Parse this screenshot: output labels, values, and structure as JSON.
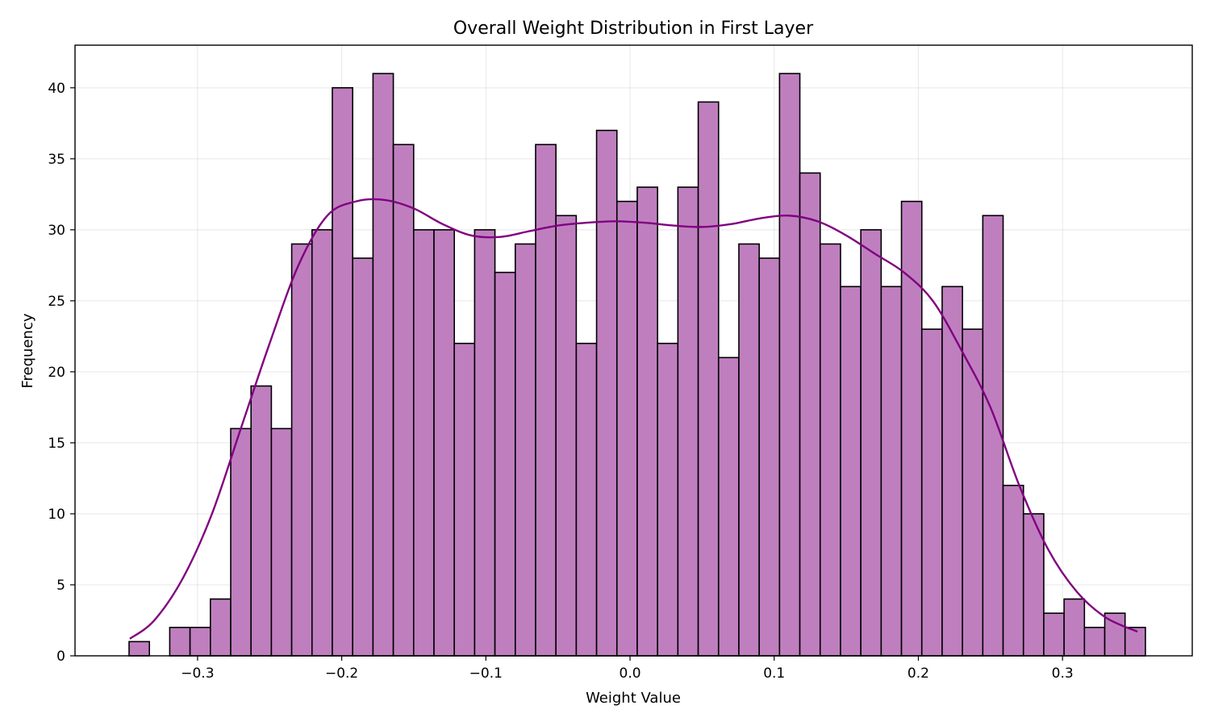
{
  "chart_data": {
    "type": "bar",
    "subtype": "histogram",
    "title": "Overall Weight Distribution in First Layer",
    "xlabel": "Weight Value",
    "ylabel": "Frequency",
    "xlim": [
      -0.385,
      0.39
    ],
    "ylim": [
      0,
      43
    ],
    "xticks": [
      -0.3,
      -0.2,
      -0.1,
      0.0,
      0.1,
      0.2,
      0.3
    ],
    "xtick_labels": [
      "−0.3",
      "−0.2",
      "−0.1",
      "0.0",
      "0.1",
      "0.2",
      "0.3"
    ],
    "yticks": [
      0,
      5,
      10,
      15,
      20,
      25,
      30,
      35,
      40
    ],
    "ytick_labels": [
      "0",
      "5",
      "10",
      "15",
      "20",
      "25",
      "30",
      "35",
      "40"
    ],
    "grid": true,
    "bin_start": -0.3475,
    "bin_width": 0.0141,
    "counts": [
      1,
      0,
      2,
      2,
      4,
      16,
      19,
      16,
      29,
      30,
      40,
      28,
      41,
      36,
      30,
      30,
      22,
      30,
      27,
      29,
      36,
      31,
      22,
      37,
      32,
      33,
      22,
      33,
      39,
      21,
      29,
      28,
      41,
      34,
      29,
      26,
      30,
      26,
      32,
      23,
      26,
      23,
      31,
      12,
      10,
      3,
      4,
      2,
      3,
      2
    ],
    "kde": {
      "x": [
        -0.347,
        -0.33,
        -0.31,
        -0.29,
        -0.27,
        -0.25,
        -0.23,
        -0.21,
        -0.19,
        -0.17,
        -0.15,
        -0.13,
        -0.11,
        -0.09,
        -0.07,
        -0.05,
        -0.03,
        -0.01,
        0.01,
        0.03,
        0.05,
        0.07,
        0.09,
        0.11,
        0.13,
        0.15,
        0.17,
        0.19,
        0.21,
        0.23,
        0.25,
        0.27,
        0.29,
        0.31,
        0.33,
        0.352
      ],
      "y": [
        1.2,
        2.5,
        5.5,
        10.0,
        16.0,
        22.0,
        27.5,
        31.0,
        32.0,
        32.1,
        31.5,
        30.4,
        29.6,
        29.5,
        29.9,
        30.3,
        30.5,
        30.6,
        30.5,
        30.3,
        30.2,
        30.4,
        30.8,
        31.0,
        30.6,
        29.6,
        28.3,
        27.0,
        25.0,
        21.5,
        17.5,
        12.0,
        7.5,
        4.5,
        2.7,
        1.7
      ]
    },
    "colors": {
      "bar_fill": "#bf7fbf",
      "bar_edge": "#000000",
      "kde_line": "#800080"
    }
  }
}
